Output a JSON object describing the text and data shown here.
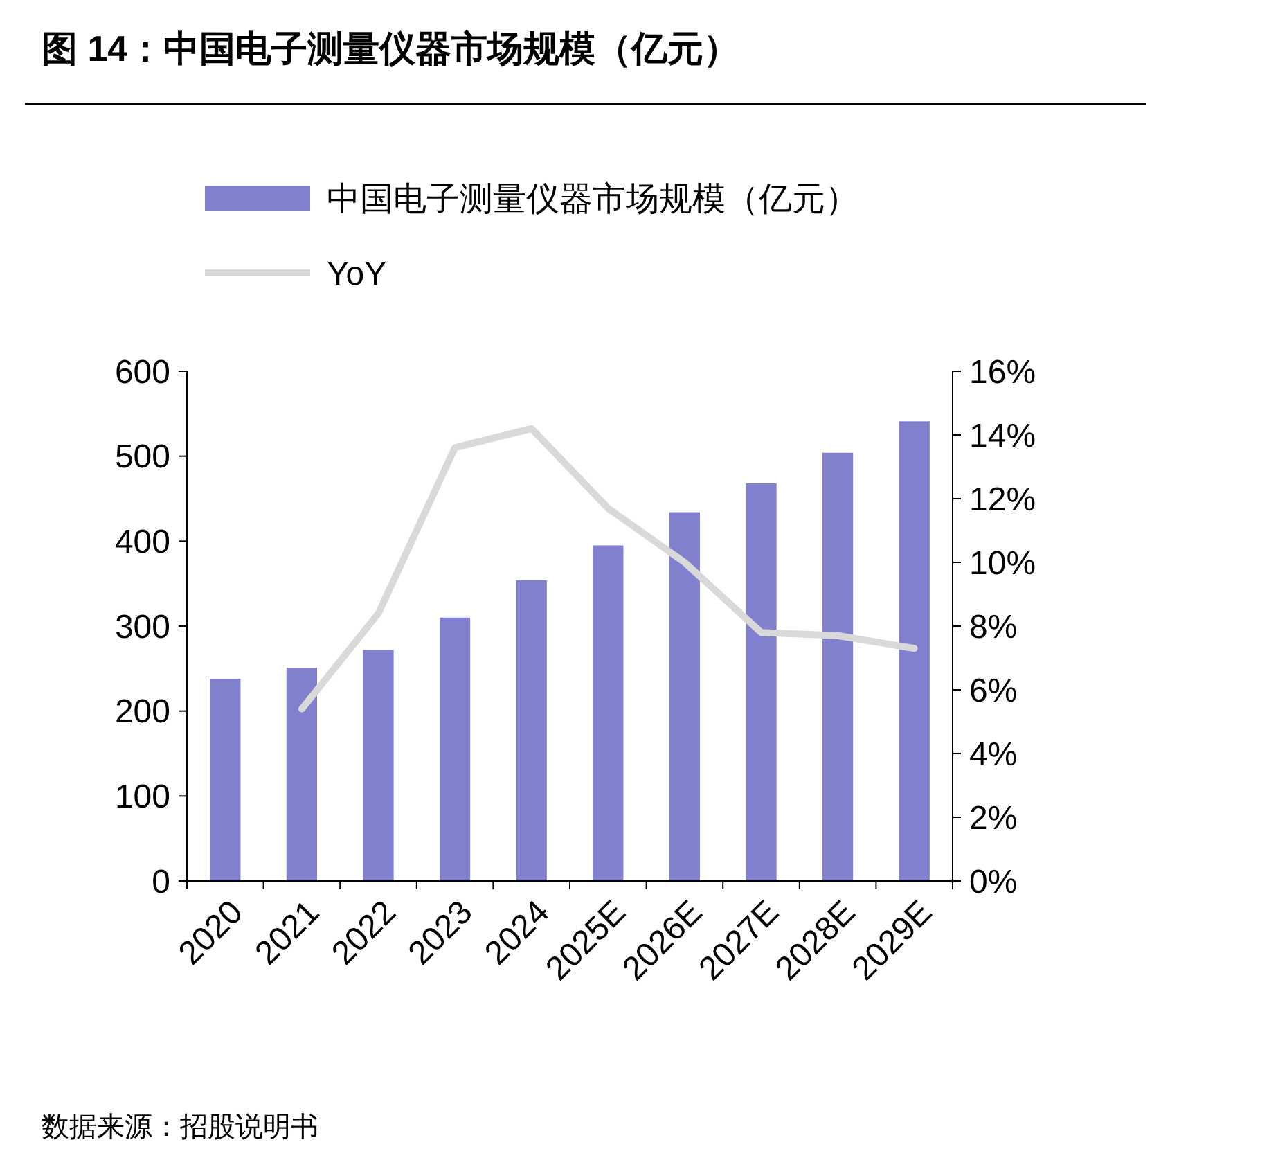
{
  "chart_data": {
    "type": "bar",
    "title": "图 14：中国电子测量仪器市场规模（亿元）",
    "categories": [
      "2020",
      "2021",
      "2022",
      "2023",
      "2024",
      "2025E",
      "2026E",
      "2027E",
      "2028E",
      "2029E"
    ],
    "series": [
      {
        "name": "中国电子测量仪器市场规模（亿元）",
        "color": "#8080cc",
        "values": [
          238,
          251,
          272,
          310,
          354,
          395,
          434,
          468,
          504,
          541
        ]
      },
      {
        "name": "YoY",
        "type": "line",
        "axis": "y2",
        "color": "#d9d9d9",
        "values": [
          null,
          5.4,
          8.4,
          13.6,
          14.2,
          11.7,
          10.0,
          7.8,
          7.7,
          7.3
        ]
      }
    ],
    "ylim": [
      0,
      600
    ],
    "yticks": [
      0,
      100,
      200,
      300,
      400,
      500,
      600
    ],
    "y2lim": [
      0,
      16
    ],
    "y2ticks": [
      {
        "value": 0,
        "label": "0%"
      },
      {
        "value": 2,
        "label": "2%"
      },
      {
        "value": 4,
        "label": "4%"
      },
      {
        "value": 6,
        "label": "6%"
      },
      {
        "value": 8,
        "label": "8%"
      },
      {
        "value": 10,
        "label": "10%"
      },
      {
        "value": 12,
        "label": "12%"
      },
      {
        "value": 14,
        "label": "14%"
      },
      {
        "value": 16,
        "label": "16%"
      }
    ],
    "legend": "top left",
    "marker": "none",
    "line_style": "solid",
    "grid": false,
    "annotations": [
      "数据来源：招股说明书"
    ]
  }
}
